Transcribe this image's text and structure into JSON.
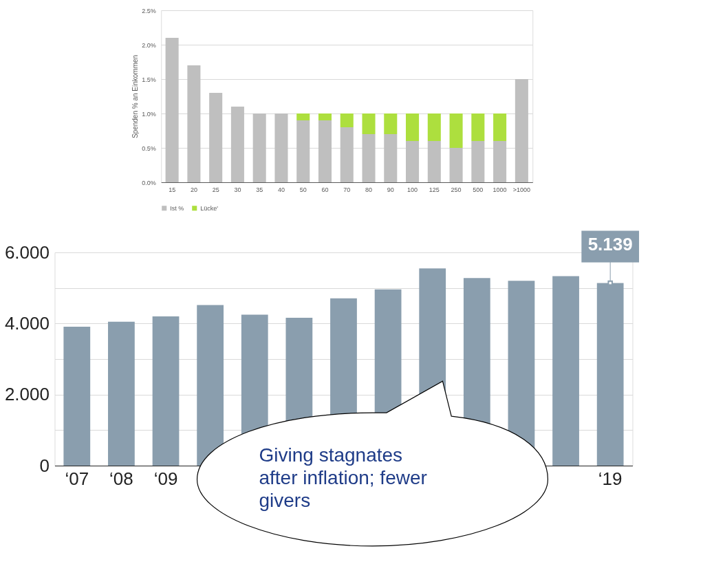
{
  "chart_data": [
    {
      "type": "bar",
      "stacked": true,
      "ylabel": "Spenden %  an Einkommen",
      "categories": [
        "15",
        "20",
        "25",
        "30",
        "35",
        "40",
        "50",
        "60",
        "70",
        "80",
        "90",
        "100",
        "125",
        "250",
        "500",
        "1000",
        ">1000"
      ],
      "series": [
        {
          "name": "Ist %",
          "color": "#bfbfbf",
          "values": [
            2.1,
            1.7,
            1.3,
            1.1,
            1.0,
            1.0,
            0.9,
            0.9,
            0.8,
            0.7,
            0.7,
            0.6,
            0.6,
            0.5,
            0.6,
            0.6,
            1.5
          ]
        },
        {
          "name": "Lücke'",
          "color": "#addf3e",
          "values": [
            null,
            null,
            null,
            null,
            null,
            null,
            0.1,
            0.1,
            0.2,
            0.3,
            0.3,
            0.4,
            0.4,
            0.5,
            0.4,
            0.4,
            null
          ]
        }
      ],
      "ylim": [
        0,
        2.5
      ],
      "yticks": [
        {
          "value": 0,
          "label": "0.0%"
        },
        {
          "value": 0.5,
          "label": "0.5%"
        },
        {
          "value": 1.0,
          "label": "1.0%"
        },
        {
          "value": 1.5,
          "label": "1.5%"
        },
        {
          "value": 2.0,
          "label": "2.0%"
        },
        {
          "value": 2.5,
          "label": "2.5%"
        }
      ],
      "grid": "y",
      "legend": "bottom"
    },
    {
      "type": "bar",
      "categories": [
        "‘07",
        "‘08",
        "‘09",
        null,
        null,
        null,
        null,
        null,
        null,
        null,
        null,
        null,
        "‘19"
      ],
      "values": [
        3.91,
        4.05,
        4.2,
        4.52,
        4.25,
        4.16,
        4.71,
        4.96,
        5.55,
        5.28,
        5.2,
        5.33,
        5.139
      ],
      "value_labels": [
        null,
        null,
        null,
        null,
        null,
        null,
        null,
        null,
        null,
        null,
        null,
        null,
        "5.139"
      ],
      "color": "#8a9eae",
      "ylim": [
        0,
        6
      ],
      "yticks": [
        {
          "value": 0,
          "label": "0"
        },
        {
          "value": 1,
          "label": null
        },
        {
          "value": 2,
          "label": "2.000"
        },
        {
          "value": 3,
          "label": null
        },
        {
          "value": 4,
          "label": "4.000"
        },
        {
          "value": 5,
          "label": null
        },
        {
          "value": 6,
          "label": "6.000"
        }
      ],
      "grid": "y",
      "annotations": [
        "Giving stagnates\nafter inflation; fewer\ngivers"
      ]
    }
  ]
}
